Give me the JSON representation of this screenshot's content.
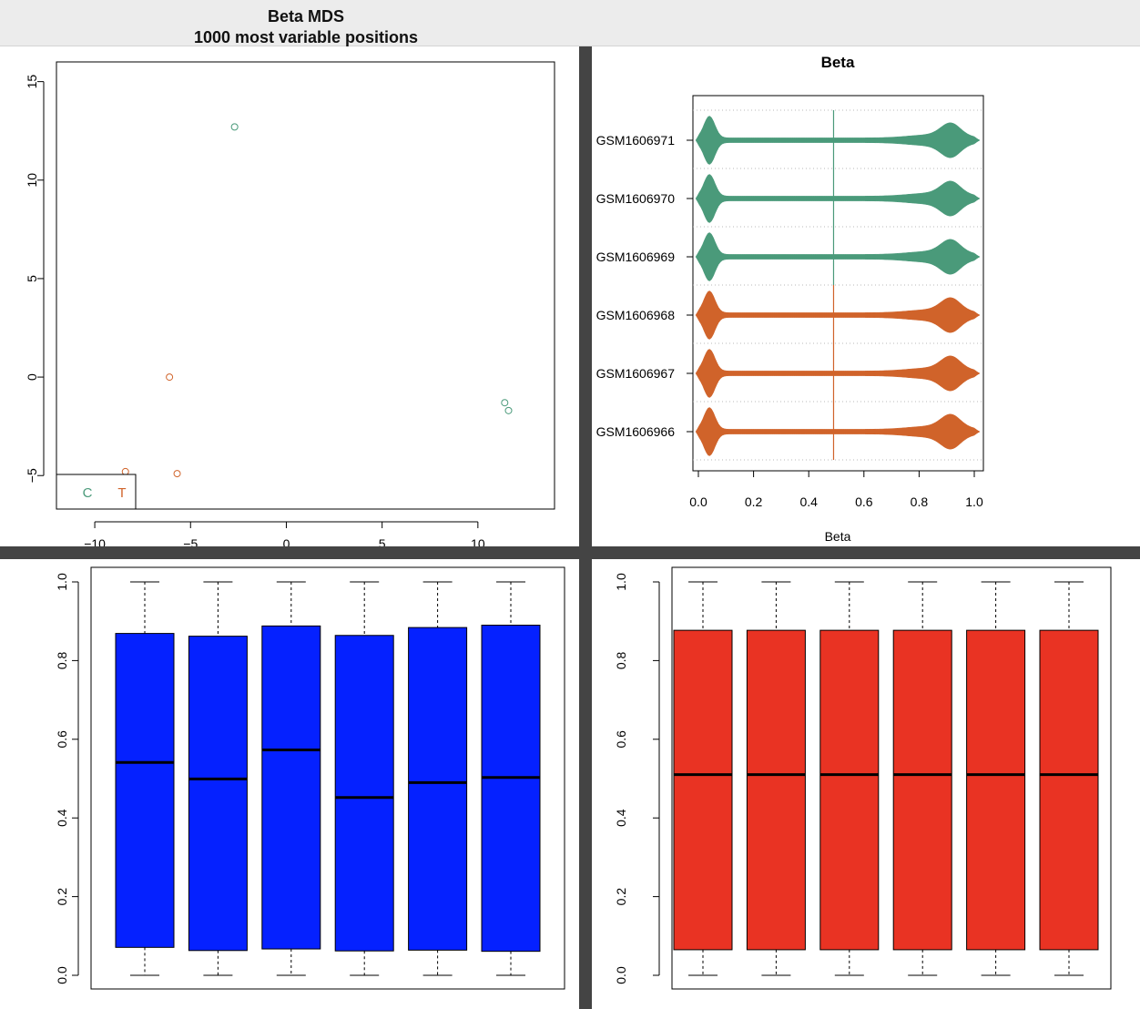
{
  "window": {
    "title_line1": "Beta MDS",
    "title_line2": "1000 most variable positions"
  },
  "colors": {
    "control": "#4a9a7a",
    "tumor": "#d0632a",
    "raw_box": "#0521ff",
    "norm_box": "#e93323",
    "divider": "#444444"
  },
  "chart_data": [
    {
      "type": "scatter",
      "title": "",
      "xlabel": "",
      "ylabel": "",
      "xlim": [
        -12,
        14
      ],
      "ylim": [
        -6.7,
        16
      ],
      "xticks": [
        "-10",
        "-5",
        "0",
        "5",
        "10"
      ],
      "yticks": [
        "-5",
        "0",
        "5",
        "10",
        "15"
      ],
      "grid": false,
      "legend": {
        "position": "bottom-left",
        "entries": [
          "C",
          "T"
        ]
      },
      "series": [
        {
          "name": "C",
          "x": [
            -2.7,
            11.4,
            11.6
          ],
          "y": [
            12.7,
            -1.3,
            -1.7
          ]
        },
        {
          "name": "T",
          "x": [
            -6.1,
            -8.4,
            -5.7
          ],
          "y": [
            0.0,
            -4.8,
            -4.9
          ]
        }
      ]
    },
    {
      "type": "violin",
      "title": "Beta",
      "xlabel": "Beta",
      "ylabel": "",
      "xlim": [
        0,
        1
      ],
      "xticks": [
        "0.0",
        "0.2",
        "0.4",
        "0.6",
        "0.8",
        "1.0"
      ],
      "grid": true,
      "categories": [
        "GSM1606971",
        "GSM1606970",
        "GSM1606969",
        "GSM1606968",
        "GSM1606967",
        "GSM1606966"
      ],
      "groups": [
        "C",
        "C",
        "C",
        "T",
        "T",
        "T"
      ],
      "group_median": {
        "C": 0.49,
        "T": 0.49
      }
    },
    {
      "type": "box",
      "title": "",
      "ylim": [
        0,
        1
      ],
      "yticks": [
        "0.0",
        "0.2",
        "0.4",
        "0.6",
        "0.8",
        "1.0"
      ],
      "boxes": [
        {
          "min": 0.0,
          "q1": 0.071,
          "median": 0.541,
          "q3": 0.869,
          "max": 1.0
        },
        {
          "min": 0.0,
          "q1": 0.063,
          "median": 0.499,
          "q3": 0.862,
          "max": 1.0
        },
        {
          "min": 0.0,
          "q1": 0.067,
          "median": 0.573,
          "q3": 0.888,
          "max": 1.0
        },
        {
          "min": 0.0,
          "q1": 0.062,
          "median": 0.452,
          "q3": 0.864,
          "max": 1.0
        },
        {
          "min": 0.0,
          "q1": 0.064,
          "median": 0.49,
          "q3": 0.884,
          "max": 1.0
        },
        {
          "min": 0.0,
          "q1": 0.061,
          "median": 0.503,
          "q3": 0.89,
          "max": 1.0
        }
      ]
    },
    {
      "type": "box",
      "title": "",
      "ylim": [
        0,
        1
      ],
      "yticks": [
        "0.0",
        "0.2",
        "0.4",
        "0.6",
        "0.8",
        "1.0"
      ],
      "boxes": [
        {
          "min": 0.0,
          "q1": 0.065,
          "median": 0.51,
          "q3": 0.877,
          "max": 1.0
        },
        {
          "min": 0.0,
          "q1": 0.065,
          "median": 0.51,
          "q3": 0.877,
          "max": 1.0
        },
        {
          "min": 0.0,
          "q1": 0.065,
          "median": 0.51,
          "q3": 0.877,
          "max": 1.0
        },
        {
          "min": 0.0,
          "q1": 0.065,
          "median": 0.51,
          "q3": 0.877,
          "max": 1.0
        },
        {
          "min": 0.0,
          "q1": 0.065,
          "median": 0.51,
          "q3": 0.877,
          "max": 1.0
        },
        {
          "min": 0.0,
          "q1": 0.065,
          "median": 0.51,
          "q3": 0.877,
          "max": 1.0
        }
      ]
    }
  ]
}
